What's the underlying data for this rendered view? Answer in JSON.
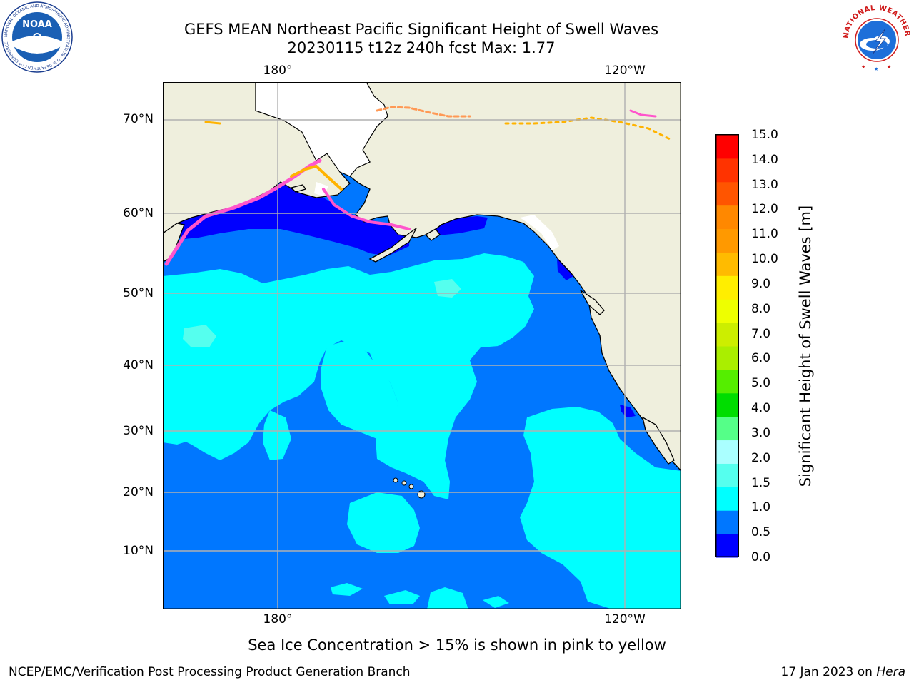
{
  "header": {
    "title_line1": "GEFS MEAN Northeast Pacific Significant Height of Swell Waves",
    "title_line2": "20230115 t12z 240h fcst   Max: 1.77"
  },
  "logos": {
    "left": {
      "name": "NOAA",
      "ring_text": "NATIONAL OCEANIC AND ATMOSPHERIC ADMINISTRATION · U.S. DEPARTMENT OF COMMERCE"
    },
    "right": {
      "name": "NATIONAL WEATHER SERVICE"
    }
  },
  "map": {
    "lon_ticks_top": [
      "180°",
      "120°W"
    ],
    "lon_ticks_bottom": [
      "180°",
      "120°W"
    ],
    "lat_ticks": [
      "70°N",
      "60°N",
      "50°N",
      "40°N",
      "30°N",
      "20°N",
      "10°N"
    ],
    "grid": true,
    "colors": {
      "ocean_dark": "#0000ff",
      "ocean_mid": "#0077ff",
      "ocean_light": "#00ffff",
      "land": "#efefdd",
      "ice_pink": "#ff55cc",
      "ice_orange": "#ffb300",
      "ice_yellow": "#ffee00",
      "gridline": "#b0b0b0"
    }
  },
  "colorbar": {
    "title": "Significant Height of Swell Waves [m]",
    "tick_labels": [
      "15.0",
      "14.0",
      "13.0",
      "12.0",
      "11.0",
      "10.0",
      "9.0",
      "8.0",
      "7.0",
      "6.0",
      "5.0",
      "4.0",
      "3.0",
      "2.0",
      "1.5",
      "1.0",
      "0.5",
      "0.0"
    ],
    "colors_bottom_to_top": [
      "#0000ff",
      "#0077ff",
      "#00ffff",
      "#55ffee",
      "#aaffff",
      "#55ff88",
      "#00dd00",
      "#55ee00",
      "#aaee00",
      "#ccee00",
      "#eeff00",
      "#ffee00",
      "#ffbb00",
      "#ff9900",
      "#ff8800",
      "#ff5500",
      "#ff3300",
      "#ff0000"
    ]
  },
  "caption": "Sea Ice Concentration > 15% is shown in pink to yellow",
  "footer": {
    "left": "NCEP/EMC/Verification Post Processing Product Generation Branch",
    "date": "17 Jan 2023 on ",
    "host": "Hera"
  }
}
